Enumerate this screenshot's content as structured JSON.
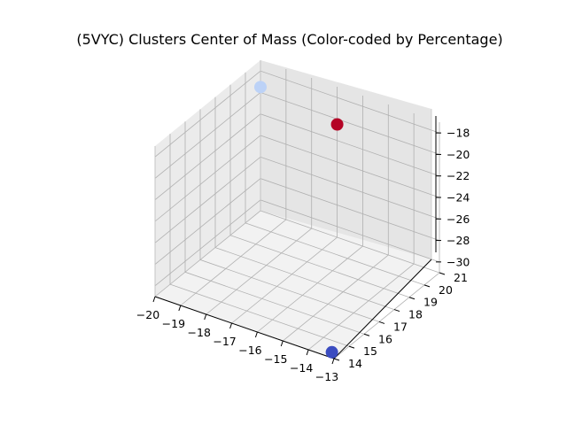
{
  "chart_data": {
    "type": "scatter",
    "title": "(5VYC) Clusters Center of Mass (Color-coded by Percentage)",
    "xlabel": "",
    "ylabel": "",
    "zlabel": "",
    "xlim": [
      -20,
      -13
    ],
    "ylim": [
      14,
      21
    ],
    "zlim": [
      -31,
      -17
    ],
    "x_ticks": [
      -20,
      -19,
      -18,
      -17,
      -16,
      -15,
      -14,
      -13
    ],
    "y_ticks": [
      14,
      15,
      16,
      17,
      18,
      19,
      20,
      21
    ],
    "z_ticks": [
      -30,
      -28,
      -26,
      -24,
      -22,
      -20,
      -18
    ],
    "x_tick_labels": [
      "−20",
      "−19",
      "−18",
      "−17",
      "−16",
      "−15",
      "−14",
      "−13"
    ],
    "y_tick_labels": [
      "14",
      "15",
      "16",
      "17",
      "18",
      "19",
      "20",
      "21"
    ],
    "z_tick_labels": [
      "−30",
      "−28",
      "−26",
      "−24",
      "−22",
      "−20",
      "−18"
    ],
    "grid": true,
    "colormap": "coolwarm",
    "points": [
      {
        "x": -20.0,
        "y": 21.0,
        "z": -19.5,
        "color": "#bcd2f7"
      },
      {
        "x": -13.2,
        "y": 14.2,
        "z": -30.8,
        "color": "#3b4cc0"
      },
      {
        "x": -17.0,
        "y": 21.0,
        "z": -20.5,
        "color": "#b40426"
      }
    ]
  }
}
